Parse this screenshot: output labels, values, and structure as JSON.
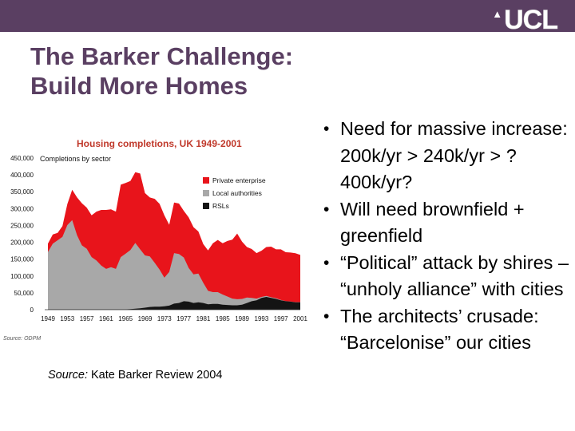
{
  "header": {
    "logo": "UCL",
    "bar_color": "#5a3f62"
  },
  "slide": {
    "title_line1": "The Barker Challenge:",
    "title_line2": "Build More Homes",
    "source_prefix": "Source:",
    "source_rest": " Kate Barker Review 2004"
  },
  "bullets": [
    "Need for massive increase: 200k/yr > 240k/yr > ? 400k/yr?",
    "Will need brownfield + greenfield",
    "“Political” attack by shires – “unholy alliance” with  cities",
    "The architects’ crusade: “Barcelonise” our cities"
  ],
  "chart_data": {
    "type": "area",
    "title": "Housing completions, UK 1949-2001",
    "ylabel": "Completions by sector",
    "footnote": "Source: ODPM",
    "ylim": [
      0,
      450000
    ],
    "y_ticks": [
      "450,000",
      "400,000",
      "350,000",
      "300,000",
      "250,000",
      "200,000",
      "150,000",
      "100,000",
      "50,000",
      "0"
    ],
    "y_tick_values": [
      450000,
      400000,
      350000,
      300000,
      250000,
      200000,
      150000,
      100000,
      50000,
      0
    ],
    "x_tick_labels": [
      "1949",
      "1953",
      "1957",
      "1961",
      "1965",
      "1969",
      "1973",
      "1977",
      "1981",
      "1985",
      "1989",
      "1993",
      "1997",
      "2001"
    ],
    "x": [
      1949,
      1950,
      1951,
      1952,
      1953,
      1954,
      1955,
      1956,
      1957,
      1958,
      1959,
      1960,
      1961,
      1962,
      1963,
      1964,
      1965,
      1966,
      1967,
      1968,
      1969,
      1970,
      1971,
      1972,
      1973,
      1974,
      1975,
      1976,
      1977,
      1978,
      1979,
      1980,
      1981,
      1982,
      1983,
      1984,
      1985,
      1986,
      1987,
      1988,
      1989,
      1990,
      1991,
      1992,
      1993,
      1994,
      1995,
      1996,
      1997,
      1998,
      1999,
      2000,
      2001
    ],
    "xlim": [
      1949,
      2001
    ],
    "colors": {
      "private": "#e8141b",
      "local": "#a8a8a8",
      "rsl": "#141414"
    },
    "legend": [
      "Private enterprise",
      "Local authorities",
      "RSLs"
    ],
    "series": [
      {
        "name": "RSLs",
        "values": [
          1000,
          1000,
          1000,
          1000,
          1000,
          1000,
          1000,
          1000,
          1000,
          1000,
          1000,
          1000,
          1000,
          1000,
          1000,
          1000,
          1000,
          2000,
          3000,
          4000,
          6000,
          8000,
          9000,
          9000,
          10000,
          12000,
          18000,
          20000,
          25000,
          24000,
          20000,
          22000,
          20000,
          16000,
          17000,
          17000,
          15000,
          14000,
          13000,
          13000,
          15000,
          20000,
          25000,
          28000,
          35000,
          38000,
          35000,
          32000,
          28000,
          25000,
          24000,
          22000,
          22000
        ]
      },
      {
        "name": "Local authorities",
        "values": [
          170000,
          195000,
          205000,
          215000,
          250000,
          265000,
          220000,
          190000,
          180000,
          155000,
          145000,
          130000,
          120000,
          125000,
          120000,
          155000,
          165000,
          175000,
          195000,
          175000,
          155000,
          150000,
          130000,
          110000,
          85000,
          100000,
          150000,
          145000,
          130000,
          100000,
          85000,
          85000,
          60000,
          40000,
          35000,
          35000,
          30000,
          25000,
          20000,
          18000,
          17000,
          16000,
          10000,
          5000,
          3000,
          3000,
          2000,
          2000,
          1000,
          500,
          500,
          500,
          500
        ]
      },
      {
        "name": "Private enterprise",
        "values": [
          25000,
          27000,
          22000,
          32000,
          62000,
          90000,
          112000,
          125000,
          122000,
          124000,
          145000,
          165000,
          175000,
          172000,
          170000,
          215000,
          210000,
          205000,
          210000,
          225000,
          185000,
          175000,
          190000,
          195000,
          185000,
          140000,
          150000,
          150000,
          138000,
          150000,
          140000,
          125000,
          115000,
          120000,
          145000,
          155000,
          152000,
          165000,
          175000,
          195000,
          170000,
          150000,
          145000,
          135000,
          137000,
          145000,
          150000,
          145000,
          150000,
          145000,
          145000,
          145000,
          140000
        ]
      }
    ]
  }
}
